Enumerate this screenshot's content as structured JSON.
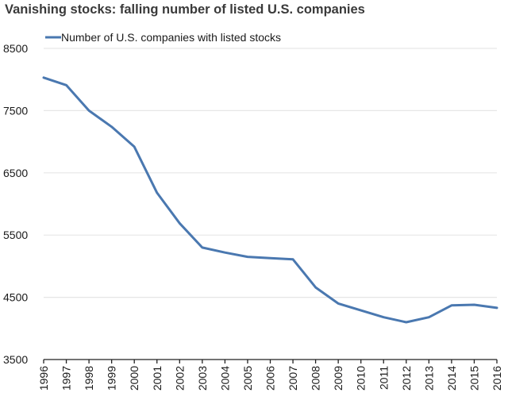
{
  "chart_data": {
    "type": "line",
    "title": "Vanishing stocks: falling number of listed U.S. companies",
    "xlabel": "",
    "ylabel": "",
    "x": [
      "1996",
      "1997",
      "1998",
      "1999",
      "2000",
      "2001",
      "2002",
      "2003",
      "2004",
      "2005",
      "2006",
      "2007",
      "2008",
      "2009",
      "2010",
      "2011",
      "2012",
      "2013",
      "2014",
      "2015",
      "2016"
    ],
    "series": [
      {
        "name": "Number of U.S. companies with listed stocks",
        "color": "#4a78b0",
        "values": [
          8030,
          7910,
          7500,
          7240,
          6920,
          6180,
          5690,
          5300,
          5220,
          5150,
          5130,
          5110,
          4660,
          4400,
          4290,
          4180,
          4100,
          4180,
          4370,
          4380,
          4330
        ]
      }
    ],
    "ylim": [
      3500,
      8500
    ],
    "yticks": [
      "3500",
      "4500",
      "5500",
      "6500",
      "7500",
      "8500"
    ],
    "grid": true,
    "legend_position": "top-left",
    "gridline_color": "#e6e6e6",
    "axis_color": "#222222"
  }
}
